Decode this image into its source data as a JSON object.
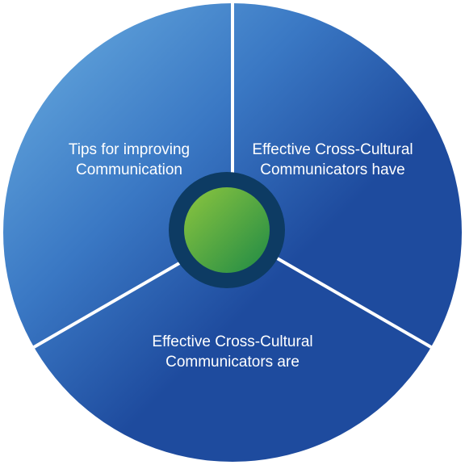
{
  "segments": {
    "top_left": {
      "line1": "Tips for improving",
      "line2": "Communication"
    },
    "top_right": {
      "line1": "Effective Cross-Cultural",
      "line2": "Communicators have"
    },
    "bottom": {
      "line1": "Effective Cross-Cultural",
      "line2": "Communicators are"
    }
  },
  "colors": {
    "segment_light": "#6cb0e2",
    "segment_dark": "#1e4b9e",
    "divider": "#ffffff",
    "hub_ring": "#0d3b63",
    "hub_light": "#8dc63f",
    "hub_dark": "#1f8a45"
  }
}
